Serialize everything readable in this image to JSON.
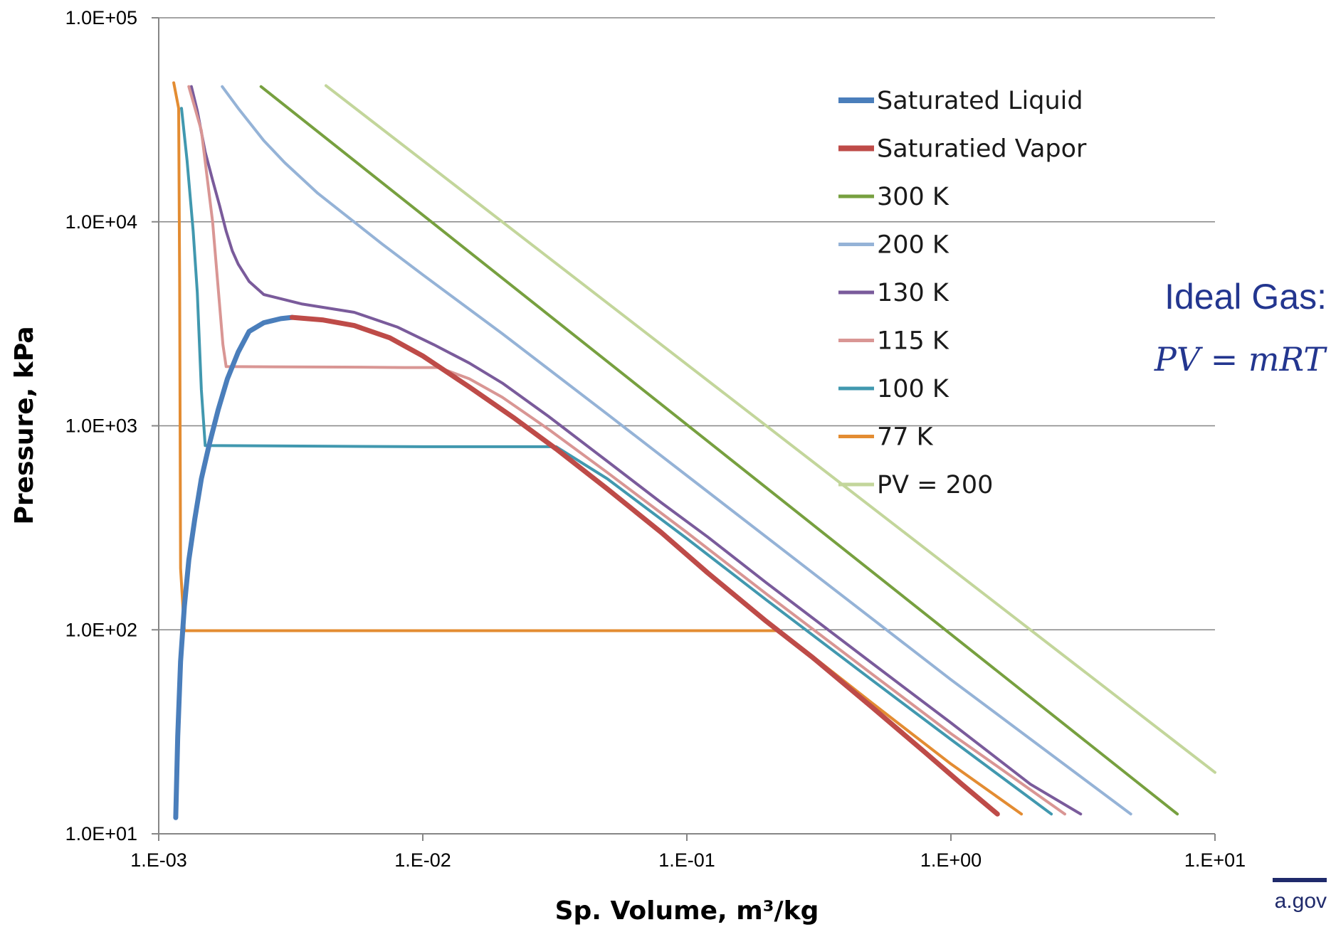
{
  "chart_data": {
    "type": "line",
    "xlabel": "Sp. Volume, m³/kg",
    "ylabel": "Pressure, kPa",
    "xscale": "log",
    "yscale": "log",
    "xlim": [
      0.001,
      10
    ],
    "ylim": [
      10,
      100000
    ],
    "x_ticks": [
      0.001,
      0.01,
      0.1,
      1,
      10
    ],
    "x_tick_labels": [
      "1.E-03",
      "1.E-02",
      "1.E-01",
      "1.E+00",
      "1.E+01"
    ],
    "y_ticks": [
      10,
      100,
      1000,
      10000,
      100000
    ],
    "y_tick_labels": [
      "1.0E+01",
      "1.0E+02",
      "1.0E+03",
      "1.0E+04",
      "1.0E+05"
    ],
    "grid": "horizontal",
    "legend_position": "top-right",
    "series": [
      {
        "name": "Saturated Liquid",
        "color": "#4a7ebb",
        "width": 7,
        "x": [
          0.00116,
          0.00118,
          0.00121,
          0.00125,
          0.0013,
          0.00137,
          0.00145,
          0.00155,
          0.00168,
          0.00182,
          0.002,
          0.0022,
          0.0025,
          0.0029,
          0.0032
        ],
        "y": [
          12,
          30,
          70,
          130,
          220,
          350,
          550,
          800,
          1200,
          1700,
          2300,
          2900,
          3200,
          3350,
          3400
        ]
      },
      {
        "name": "Saturatied Vapor",
        "color": "#be4b48",
        "width": 7,
        "x": [
          0.0032,
          0.0042,
          0.0055,
          0.0075,
          0.01,
          0.015,
          0.022,
          0.032,
          0.05,
          0.08,
          0.12,
          0.2,
          0.3,
          0.5,
          0.8,
          1.1,
          1.5
        ],
        "y": [
          3400,
          3300,
          3100,
          2700,
          2200,
          1550,
          1100,
          770,
          490,
          300,
          190,
          110,
          73,
          42,
          25,
          17.5,
          12.5
        ]
      },
      {
        "name": "300 K",
        "color": "#77a03f",
        "width": 4,
        "x": [
          0.00244,
          7.2
        ],
        "y": [
          46000,
          12.5
        ]
      },
      {
        "name": "200 K",
        "color": "#95b3d7",
        "width": 4,
        "x": [
          0.00174,
          0.002,
          0.0025,
          0.003,
          0.004,
          0.005,
          0.007,
          0.01,
          0.02,
          0.05,
          0.1,
          0.3,
          1,
          4.8
        ],
        "y": [
          46000,
          36000,
          25000,
          19500,
          13800,
          11000,
          7800,
          5500,
          2830,
          1140,
          570,
          190,
          57,
          12.5
        ]
      },
      {
        "name": "130 K",
        "color": "#7a5b9b",
        "width": 4,
        "x": [
          0.00133,
          0.0014,
          0.0015,
          0.0016,
          0.0017,
          0.0018,
          0.0019,
          0.002,
          0.0022,
          0.0025,
          0.0035,
          0.0055,
          0.008,
          0.011,
          0.015,
          0.02,
          0.03,
          0.05,
          0.08,
          0.12,
          0.2,
          0.3,
          0.5,
          1,
          2,
          3.1
        ],
        "y": [
          46000,
          35000,
          22000,
          16000,
          12000,
          9000,
          7200,
          6200,
          5100,
          4400,
          3950,
          3600,
          3050,
          2500,
          2030,
          1620,
          1110,
          670,
          420,
          285,
          170,
          114,
          69,
          35,
          17.5,
          12.5
        ]
      },
      {
        "name": "115 K",
        "color": "#d99694",
        "width": 4,
        "x": [
          0.0013,
          0.00145,
          0.0016,
          0.00175,
          0.0018,
          0.005,
          0.0085,
          0.0115,
          0.015,
          0.02,
          0.03,
          0.05,
          0.1,
          0.2,
          0.5,
          1,
          2.7
        ],
        "y": [
          46000,
          28000,
          10000,
          2500,
          1950,
          1940,
          1930,
          1930,
          1700,
          1380,
          960,
          590,
          300,
          150,
          61,
          31,
          12.5
        ]
      },
      {
        "name": "100 K",
        "color": "#4198af",
        "width": 4,
        "x": [
          0.00122,
          0.00128,
          0.00135,
          0.0014,
          0.00145,
          0.0015,
          0.01,
          0.032,
          0.05,
          0.1,
          0.2,
          0.5,
          1,
          2.4
        ],
        "y": [
          36000,
          20000,
          9000,
          4500,
          1500,
          800,
          790,
          790,
          550,
          280,
          140,
          57,
          29,
          12.5
        ]
      },
      {
        "name": "77 K",
        "color": "#e38c32",
        "width": 4,
        "x": [
          0.00114,
          0.00119,
          0.0012,
          0.00121,
          0.00125,
          0.01,
          0.1,
          0.224,
          0.3,
          0.5,
          1,
          1.85
        ],
        "y": [
          48000,
          36000,
          5000,
          200,
          99,
          99,
          99,
          99,
          74,
          44,
          22,
          12.5
        ]
      },
      {
        "name": "PV = 200",
        "color": "#c3d69b",
        "width": 4,
        "x": [
          0.0043,
          10
        ],
        "y": [
          46500,
          20
        ]
      }
    ]
  },
  "side_note": {
    "title": "Ideal Gas:",
    "equation": "PV = mRT"
  },
  "footer": {
    "text": "a.gov"
  }
}
